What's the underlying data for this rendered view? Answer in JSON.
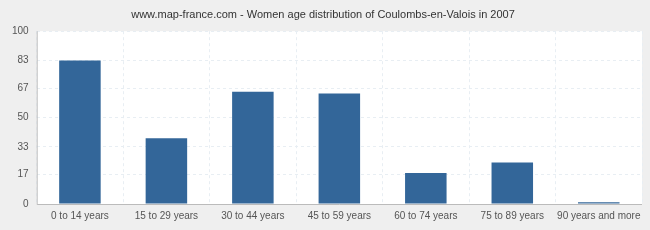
{
  "chart_data": {
    "type": "bar",
    "title": "www.map-france.com - Women age distribution of Coulombs-en-Valois in 2007",
    "categories": [
      "0 to 14 years",
      "15 to 29 years",
      "30 to 44 years",
      "45 to 59 years",
      "60 to 74 years",
      "75 to 89 years",
      "90 years and more"
    ],
    "values": [
      83,
      38,
      65,
      64,
      18,
      24,
      1
    ],
    "color": "#336699",
    "ylim": [
      0,
      100
    ],
    "yticks": [
      0,
      17,
      33,
      50,
      67,
      83,
      100
    ],
    "grid": true
  }
}
